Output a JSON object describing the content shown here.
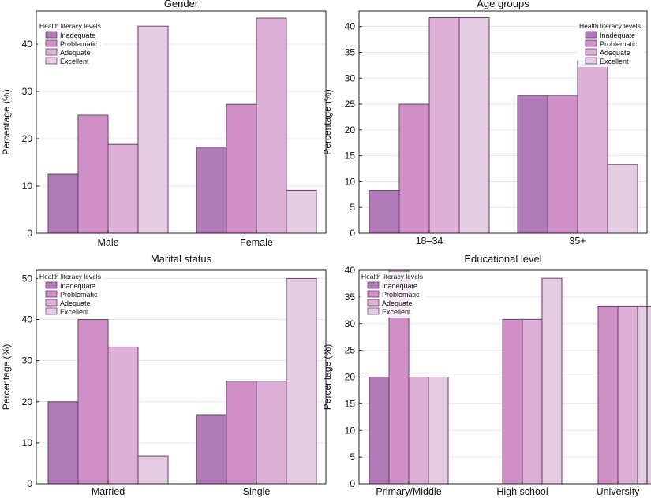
{
  "colors": {
    "series": [
      "#b07ab8",
      "#cf90c5",
      "#ddb0d5",
      "#e2cde3"
    ],
    "edge": "#6d3d6e",
    "axis": "#222222",
    "grid": "#e6e6e6"
  },
  "legend": {
    "title": "Health literacy levels",
    "items": [
      "Inadequate",
      "Problematic",
      "Adequate",
      "Excellent"
    ]
  },
  "chart_data": [
    {
      "type": "bar",
      "title": "Gender",
      "ylabel": "Percentage (%)",
      "categories": [
        "Male",
        "Female"
      ],
      "series": [
        {
          "name": "Inadequate",
          "values": [
            12.5,
            18.2
          ]
        },
        {
          "name": "Problematic",
          "values": [
            25.0,
            27.3
          ]
        },
        {
          "name": "Adequate",
          "values": [
            18.8,
            45.5
          ]
        },
        {
          "name": "Excellent",
          "values": [
            43.8,
            9.1
          ]
        }
      ],
      "ylim": [
        0,
        47
      ],
      "yticks": [
        0,
        10,
        20,
        30,
        40
      ],
      "grid": true,
      "legend_position": "top-left"
    },
    {
      "type": "bar",
      "title": "Age groups",
      "ylabel": "Percentage (%)",
      "categories": [
        "18–34",
        "35+"
      ],
      "series": [
        {
          "name": "Inadequate",
          "values": [
            8.3,
            26.7
          ]
        },
        {
          "name": "Problematic",
          "values": [
            25.0,
            26.7
          ]
        },
        {
          "name": "Adequate",
          "values": [
            41.7,
            33.3
          ]
        },
        {
          "name": "Excellent",
          "values": [
            41.7,
            13.3
          ]
        }
      ],
      "ylim": [
        0,
        43
      ],
      "yticks": [
        0,
        5,
        10,
        15,
        20,
        25,
        30,
        35,
        40
      ],
      "grid": true,
      "legend_position": "top-right"
    },
    {
      "type": "bar",
      "title": "Marital status",
      "ylabel": "Percentage (%)",
      "categories": [
        "Married",
        "Single"
      ],
      "series": [
        {
          "name": "Inadequate",
          "values": [
            20.0,
            16.7
          ]
        },
        {
          "name": "Problematic",
          "values": [
            40.0,
            25.0
          ]
        },
        {
          "name": "Adequate",
          "values": [
            33.3,
            25.0
          ]
        },
        {
          "name": "Excellent",
          "values": [
            6.7,
            50.0
          ]
        }
      ],
      "ylim": [
        0,
        52
      ],
      "yticks": [
        0,
        10,
        20,
        30,
        40,
        50
      ],
      "grid": true,
      "legend_position": "top-left"
    },
    {
      "type": "bar",
      "title": "Educational level",
      "ylabel": "Percentage (%)",
      "categories": [
        "Primary/Middle",
        "High school",
        "University"
      ],
      "series": [
        {
          "name": "Inadequate",
          "values": [
            20.0,
            0,
            0
          ]
        },
        {
          "name": "Problematic",
          "values": [
            40.0,
            30.8,
            33.3
          ]
        },
        {
          "name": "Adequate",
          "values": [
            20.0,
            30.8,
            33.3
          ]
        },
        {
          "name": "Excellent",
          "values": [
            20.0,
            38.5,
            33.3
          ]
        }
      ],
      "ylim": [
        0,
        40
      ],
      "yticks": [
        0,
        5,
        10,
        15,
        20,
        25,
        30,
        35,
        40
      ],
      "grid": true,
      "legend_position": "top-left"
    }
  ]
}
